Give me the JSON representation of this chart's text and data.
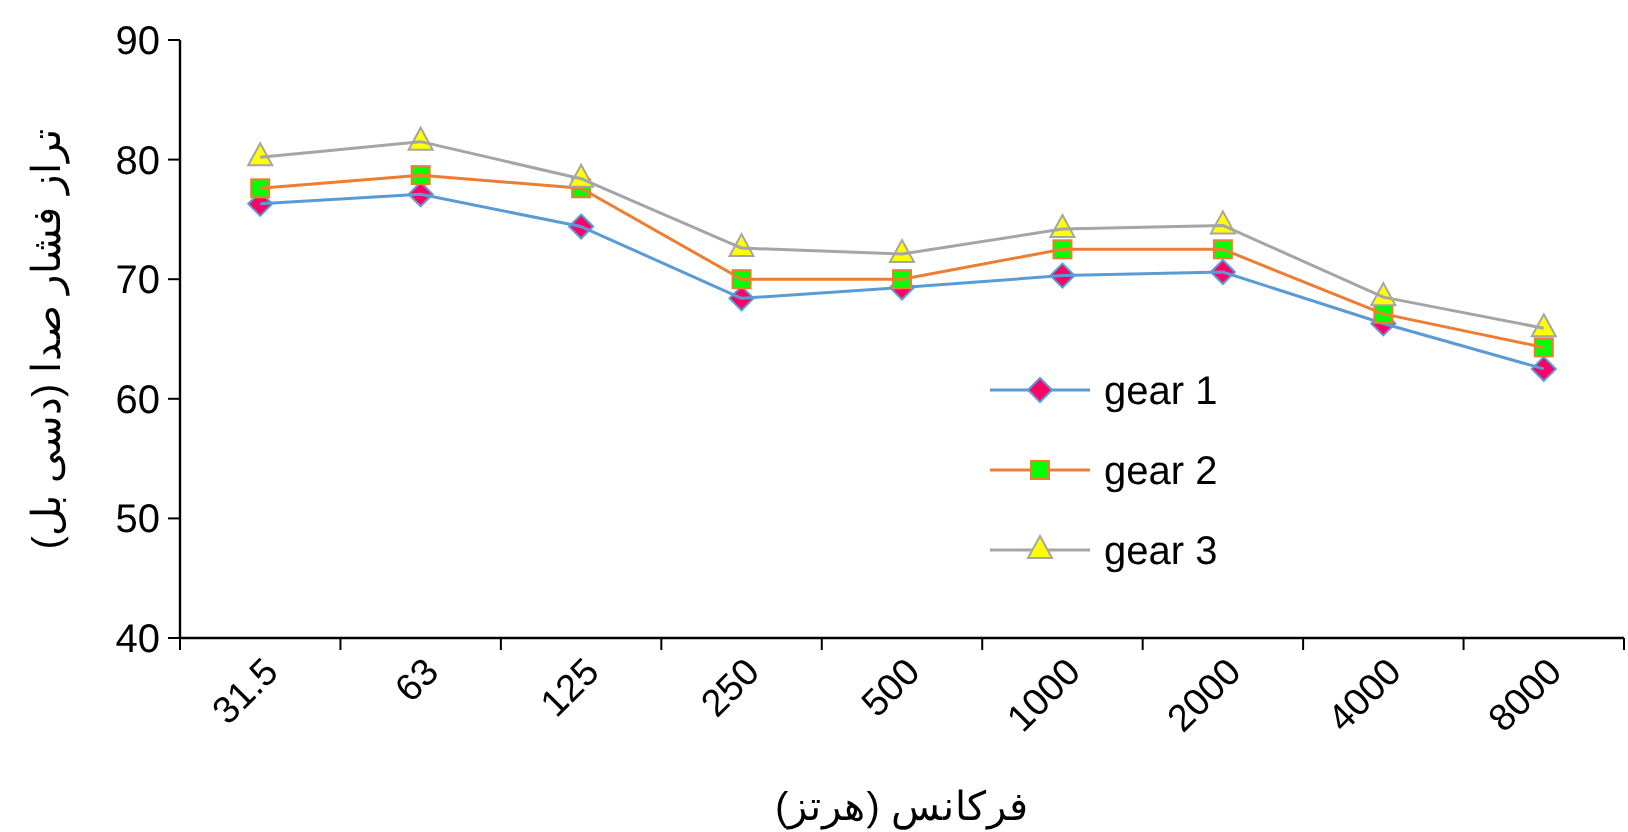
{
  "chart_data": {
    "type": "line",
    "xlabel": "فرکانس (هرتز)",
    "ylabel": "تراز فشار صدا (دسی بل)",
    "categories": [
      "31.5",
      "63",
      "125",
      "250",
      "500",
      "1000",
      "2000",
      "4000",
      "8000"
    ],
    "series": [
      {
        "name": "gear 1",
        "color": "#5b9bd5",
        "marker": "diamond",
        "values": [
          76.3,
          77.1,
          74.4,
          68.4,
          69.3,
          70.3,
          70.6,
          66.3,
          62.5
        ]
      },
      {
        "name": "gear 2",
        "color": "#ed7d31",
        "marker": "square",
        "values": [
          77.6,
          78.7,
          77.6,
          70.0,
          70.0,
          72.5,
          72.5,
          67.1,
          64.3
        ]
      },
      {
        "name": "gear 3",
        "color": "#a5a5a5",
        "marker": "triangle",
        "values": [
          80.2,
          81.5,
          78.4,
          72.6,
          72.1,
          74.2,
          74.5,
          68.5,
          65.9
        ]
      }
    ],
    "ylim": [
      40,
      90
    ],
    "yticks": [
      40,
      50,
      60,
      70,
      80,
      90
    ],
    "grid": false,
    "legend": "right",
    "line_style": "solid"
  }
}
